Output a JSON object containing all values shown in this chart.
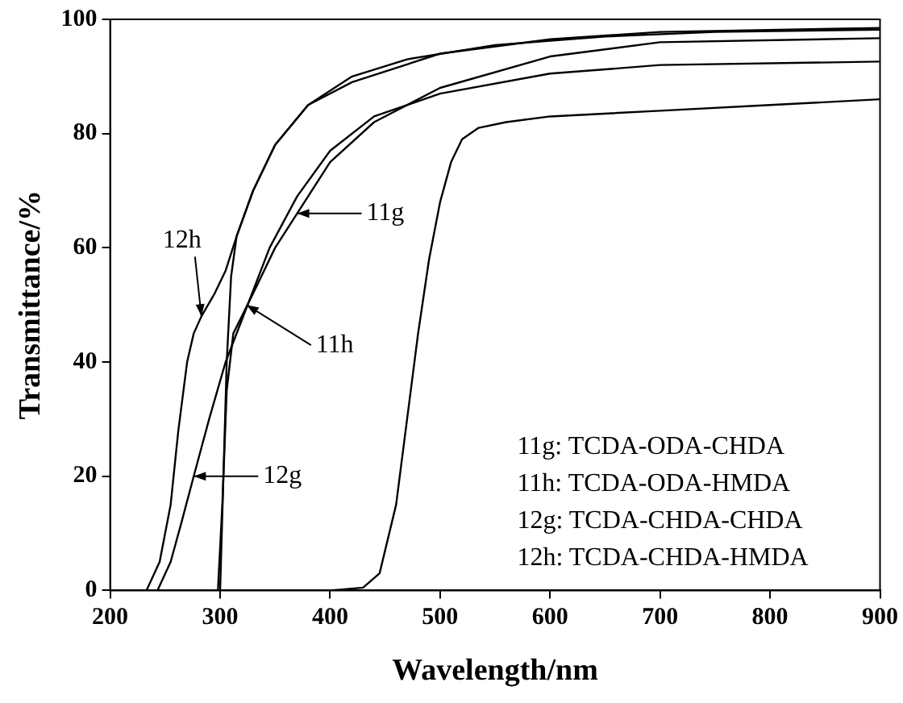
{
  "chart_data": {
    "type": "line",
    "xlabel": "Wavelength/nm",
    "ylabel": "Transmittance/%",
    "xlim": [
      200,
      900
    ],
    "xticks": [
      200,
      300,
      400,
      500,
      600,
      700,
      800,
      900
    ],
    "ylim": [
      0,
      100
    ],
    "yticks": [
      0,
      20,
      40,
      60,
      80,
      100
    ],
    "grid": false,
    "legend": false,
    "marker": "none",
    "line_style": "solid",
    "series": [
      {
        "color": "#000000",
        "x": [
          295,
          300,
          303,
          306,
          310,
          315,
          330,
          350,
          380,
          420,
          500,
          600,
          700,
          900
        ],
        "values": [
          0,
          0,
          20,
          40,
          55,
          62,
          70,
          78,
          85,
          89,
          94,
          96.5,
          97.8,
          98.5
        ]
      },
      {
        "color": "#000000",
        "x": [
          298,
          302,
          306,
          312,
          330,
          350,
          370,
          400,
          440,
          500,
          600,
          700,
          900
        ],
        "values": [
          0,
          15,
          35,
          45,
          52,
          60,
          66,
          75,
          82,
          88,
          93.5,
          96,
          96.7
        ]
      },
      {
        "color": "#000000",
        "x": [
          243,
          255,
          265,
          276,
          290,
          305,
          325,
          345,
          370,
          400,
          440,
          500,
          600,
          700,
          900
        ],
        "values": [
          0,
          5,
          12,
          20,
          30,
          40,
          50,
          60,
          69,
          77,
          83,
          87,
          90.5,
          92,
          92.6
        ]
      },
      {
        "color": "#000000",
        "x": [
          233,
          245,
          255,
          262,
          270,
          276,
          283,
          295,
          305,
          315,
          330,
          350,
          380,
          420,
          470,
          550,
          650,
          750,
          900
        ],
        "values": [
          0,
          5,
          15,
          28,
          40,
          45,
          48,
          52,
          56,
          62,
          70,
          78,
          85,
          90,
          93,
          95.5,
          97,
          97.8,
          98.2
        ]
      },
      {
        "color": "#000000",
        "x": [
          400,
          430,
          445,
          460,
          470,
          480,
          490,
          500,
          510,
          520,
          535,
          560,
          600,
          700,
          800,
          900
        ],
        "values": [
          0,
          0.5,
          3,
          15,
          30,
          45,
          58,
          68,
          75,
          79,
          81,
          82,
          83,
          84,
          85,
          86
        ]
      }
    ],
    "annotations": [
      {
        "text": "11g",
        "x": 370,
        "y": 66
      },
      {
        "text": "11h",
        "x": 324,
        "y": 50
      },
      {
        "text": "12g",
        "x": 276,
        "y": 20
      },
      {
        "text": "12h",
        "x": 283,
        "y": 48
      },
      "11g: TCDA-ODA-CHDA",
      "11h: TCDA-ODA-HMDA",
      "12g: TCDA-CHDA-CHDA",
      "12h: TCDA-CHDA-HMDA"
    ]
  }
}
